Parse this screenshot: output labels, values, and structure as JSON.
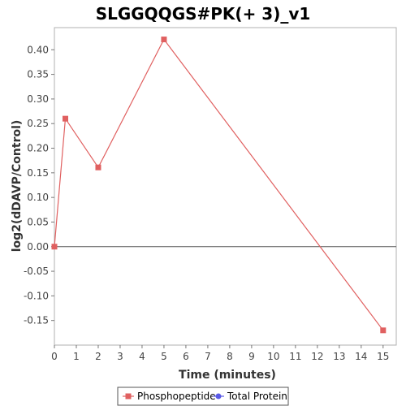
{
  "chart_data": {
    "type": "line",
    "title": "SLGGQQGS#PK(+ 3)_v1",
    "xlabel": "Time (minutes)",
    "ylabel": "log2(dDAVP/Control)",
    "xlim": [
      0,
      15.6
    ],
    "ylim": [
      -0.2,
      0.445
    ],
    "xticks": [
      0,
      1,
      2,
      3,
      4,
      5,
      6,
      7,
      8,
      9,
      10,
      11,
      12,
      13,
      14,
      15
    ],
    "yticks": [
      -0.15,
      -0.1,
      -0.05,
      0.0,
      0.05,
      0.1,
      0.15,
      0.2,
      0.25,
      0.3,
      0.35,
      0.4
    ],
    "ytick_labels": [
      "-0.15",
      "-0.10",
      "-0.05",
      "0.00",
      "0.05",
      "0.10",
      "0.15",
      "0.20",
      "0.25",
      "0.30",
      "0.35",
      "0.40"
    ],
    "zero_line": true,
    "grid": false,
    "legend_position": "bottom",
    "series": [
      {
        "name": "Phosphopeptide",
        "color": "#e06060",
        "marker": "square",
        "x": [
          0,
          0.5,
          2,
          5,
          15
        ],
        "y": [
          0.0,
          0.26,
          0.161,
          0.421,
          -0.17
        ]
      },
      {
        "name": "Total Protein",
        "color": "#5a5ae6",
        "marker": "circle",
        "x": [],
        "y": []
      }
    ]
  }
}
